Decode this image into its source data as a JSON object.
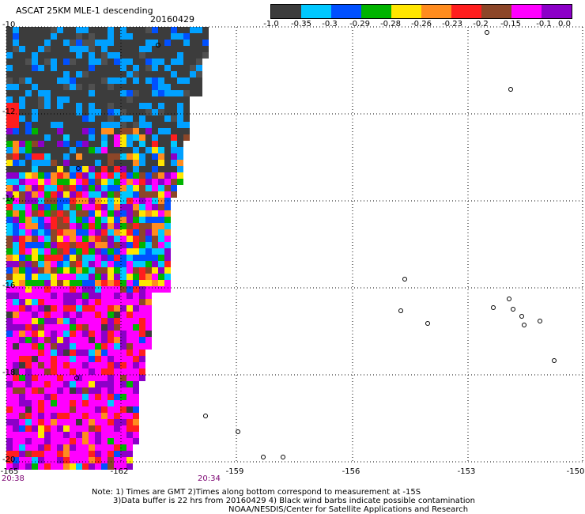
{
  "header": {
    "title": "ASCAT 25KM MLE-1 descending",
    "date": "20160429"
  },
  "colorbar": {
    "segments": [
      "#3c3c3c",
      "#00c8ff",
      "#0050ff",
      "#00b400",
      "#ffe600",
      "#ff8c1e",
      "#ff1e1e",
      "#8c4628",
      "#ff00ff",
      "#8c00c8"
    ],
    "labels": [
      "-1.0",
      "-0.35",
      "-0.3",
      "-0.29",
      "-0.28",
      "-0.26",
      "-0.23",
      "-0.2",
      "-0.15",
      "-0.1",
      "0.0"
    ]
  },
  "axes": {
    "lat_labels": [
      "-10",
      "-12",
      "-14",
      "-16",
      "-18",
      "-20"
    ],
    "lon_labels": [
      "-165",
      "-162",
      "-159",
      "-156",
      "-153",
      "-150"
    ]
  },
  "times": {
    "left": "20:38",
    "right": "20:34"
  },
  "notes": {
    "line1": "Note: 1) Times are GMT 2)Times along bottom correspond to measurement at -15S",
    "line2": "3)Data buffer is 22 hrs from 20160429 4) Black wind barbs indicate possible contamination",
    "line3": "NOAA/NESDIS/Center for Satellite Applications and Research"
  }
}
